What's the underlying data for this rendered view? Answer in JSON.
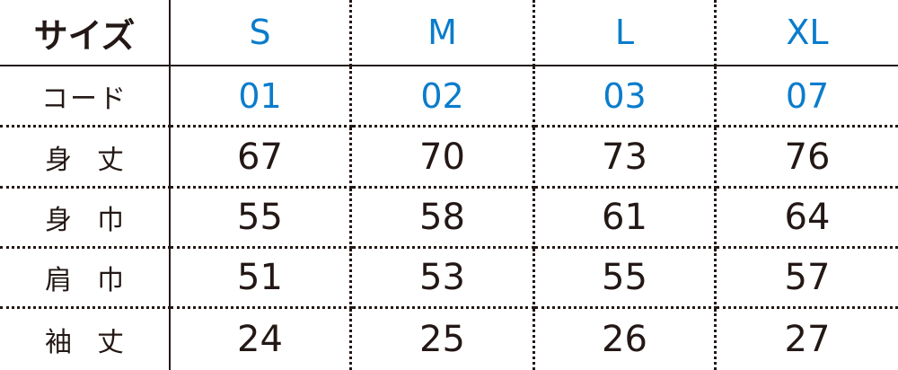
{
  "header": {
    "label": "サイズ",
    "sizes": [
      "S",
      "M",
      "L",
      "XL"
    ]
  },
  "rows": [
    {
      "label": "コード",
      "values": [
        "01",
        "02",
        "03",
        "07"
      ],
      "kind": "code"
    },
    {
      "label": "身丈",
      "values": [
        "67",
        "70",
        "73",
        "76"
      ]
    },
    {
      "label": "身巾",
      "values": [
        "55",
        "58",
        "61",
        "64"
      ]
    },
    {
      "label": "肩巾",
      "values": [
        "51",
        "53",
        "55",
        "57"
      ]
    },
    {
      "label": "袖丈",
      "values": [
        "24",
        "25",
        "26",
        "27"
      ]
    }
  ],
  "colors": {
    "accent": "#0a7ccc",
    "text": "#231815"
  }
}
